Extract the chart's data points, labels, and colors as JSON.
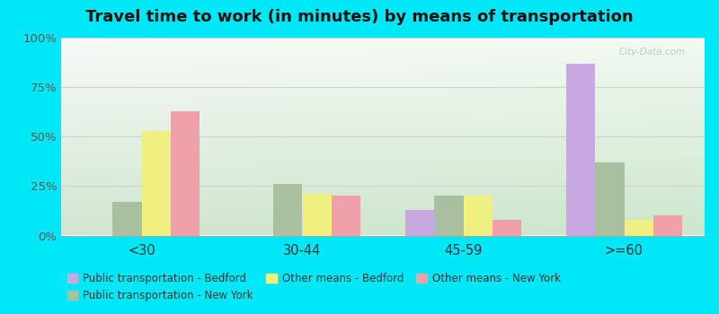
{
  "title": "Travel time to work (in minutes) by means of transportation",
  "categories": [
    "<30",
    "30-44",
    "45-59",
    ">=60"
  ],
  "series": {
    "Public transportation - Bedford": [
      0,
      0,
      13,
      87
    ],
    "Public transportation - New York": [
      17,
      26,
      20,
      37
    ],
    "Other means - Bedford": [
      53,
      21,
      20,
      8
    ],
    "Other means - New York": [
      63,
      20,
      8,
      10
    ]
  },
  "colors": {
    "Public transportation - Bedford": "#c8a8e0",
    "Public transportation - New York": "#a8c0a0",
    "Other means - Bedford": "#f0f080",
    "Other means - New York": "#f0a0a8"
  },
  "legend_order": [
    "Public transportation - Bedford",
    "Public transportation - New York",
    "Other means - Bedford",
    "Other means - New York"
  ],
  "yticks": [
    0,
    25,
    50,
    75,
    100
  ],
  "ytick_labels": [
    "0%",
    "25%",
    "50%",
    "75%",
    "100%"
  ],
  "outer_bg": "#00e8f8",
  "watermark": "City-Data.com",
  "bar_width": 0.18,
  "title_fontsize": 13
}
